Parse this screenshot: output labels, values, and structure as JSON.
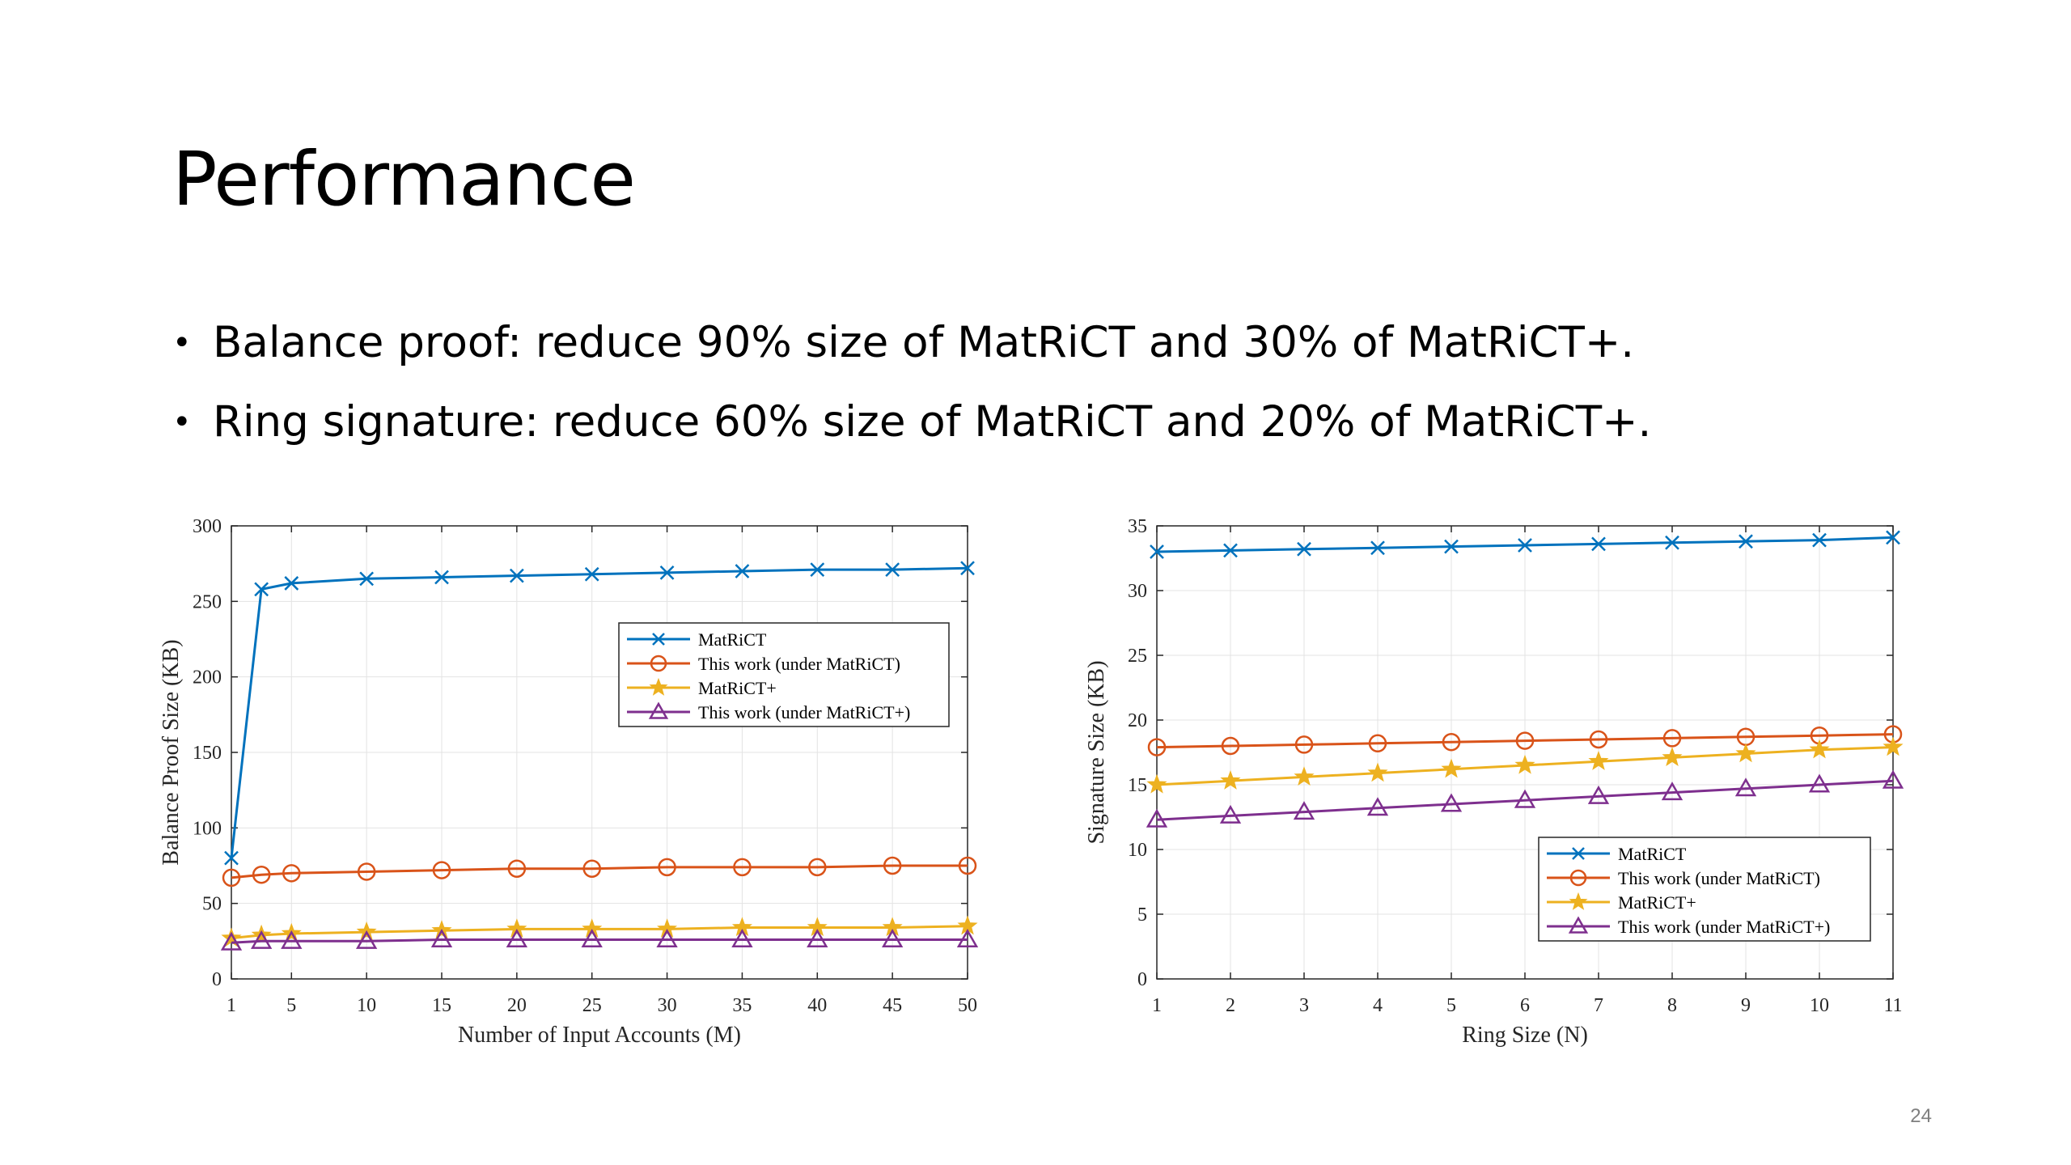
{
  "slide": {
    "title": "Performance",
    "bullets": [
      "Balance proof: reduce 90% size of MatRiCT and 30% of MatRiCT+.",
      "Ring signature: reduce 60% size of MatRiCT and 20% of MatRiCT+."
    ],
    "page_number": "24"
  },
  "chart_data": [
    {
      "type": "line",
      "title": "",
      "xlabel": "Number of Input Accounts (M)",
      "ylabel": "Balance Proof Size (KB)",
      "xlim": [
        1,
        50
      ],
      "ylim": [
        0,
        300
      ],
      "xticks": [
        1,
        5,
        10,
        15,
        20,
        25,
        30,
        35,
        40,
        45,
        50
      ],
      "yticks": [
        0,
        50,
        100,
        150,
        200,
        250,
        300
      ],
      "grid": true,
      "legend_position": "upper-right",
      "x": [
        1,
        3,
        5,
        10,
        15,
        20,
        25,
        30,
        35,
        40,
        45,
        50
      ],
      "series": [
        {
          "name": "MatRiCT",
          "color": "#0072BD",
          "marker": "x",
          "values": [
            80,
            258,
            262,
            265,
            266,
            267,
            268,
            269,
            270,
            271,
            271,
            272
          ]
        },
        {
          "name": "This work (under MatRiCT)",
          "color": "#D95319",
          "marker": "o",
          "values": [
            67,
            69,
            70,
            71,
            72,
            73,
            73,
            74,
            74,
            74,
            75,
            75
          ]
        },
        {
          "name": "MatRiCT+",
          "color": "#EDB120",
          "marker": "*",
          "values": [
            27,
            29,
            30,
            31,
            32,
            33,
            33,
            33,
            34,
            34,
            34,
            35
          ]
        },
        {
          "name": "This work (under MatRiCT+)",
          "color": "#7E2F8E",
          "marker": "^",
          "values": [
            24,
            25,
            25,
            25,
            26,
            26,
            26,
            26,
            26,
            26,
            26,
            26
          ]
        }
      ]
    },
    {
      "type": "line",
      "title": "",
      "xlabel": "Ring Size (N)",
      "ylabel": "Signature Size (KB)",
      "xlim": [
        1,
        11
      ],
      "ylim": [
        0,
        35
      ],
      "xticks": [
        1,
        2,
        3,
        4,
        5,
        6,
        7,
        8,
        9,
        10,
        11
      ],
      "yticks": [
        0,
        5,
        10,
        15,
        20,
        25,
        30,
        35
      ],
      "grid": true,
      "legend_position": "lower-right",
      "x": [
        1,
        2,
        3,
        4,
        5,
        6,
        7,
        8,
        9,
        10,
        11
      ],
      "series": [
        {
          "name": "MatRiCT",
          "color": "#0072BD",
          "marker": "x",
          "values": [
            33.0,
            33.1,
            33.2,
            33.3,
            33.4,
            33.5,
            33.6,
            33.7,
            33.8,
            33.9,
            34.1
          ]
        },
        {
          "name": "This work (under MatRiCT)",
          "color": "#D95319",
          "marker": "o",
          "values": [
            17.9,
            18.0,
            18.1,
            18.2,
            18.3,
            18.4,
            18.5,
            18.6,
            18.7,
            18.8,
            18.9
          ]
        },
        {
          "name": "MatRiCT+",
          "color": "#EDB120",
          "marker": "*",
          "values": [
            15.0,
            15.3,
            15.6,
            15.9,
            16.2,
            16.5,
            16.8,
            17.1,
            17.4,
            17.7,
            17.9
          ]
        },
        {
          "name": "This work (under MatRiCT+)",
          "color": "#7E2F8E",
          "marker": "^",
          "values": [
            12.3,
            12.6,
            12.9,
            13.2,
            13.5,
            13.8,
            14.1,
            14.4,
            14.7,
            15.0,
            15.3
          ]
        }
      ]
    }
  ]
}
